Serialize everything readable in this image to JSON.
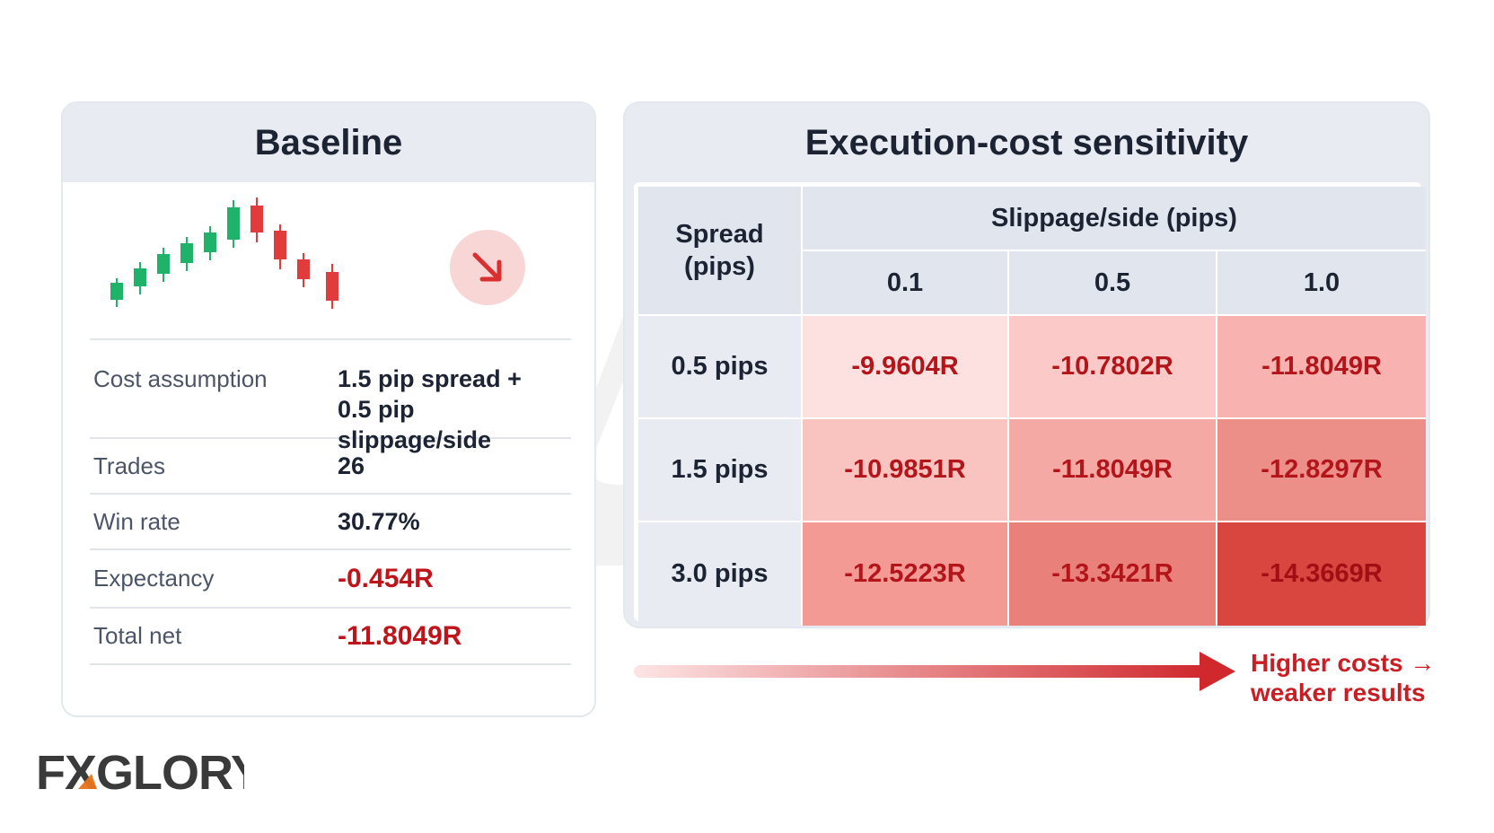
{
  "baseline": {
    "title": "Baseline",
    "trend_icon": "arrow-down-right-icon",
    "metrics": [
      {
        "label": "Cost assumption",
        "value_line1": "1.5 pip spread +",
        "value_line2": "0.5 pip slippage/side"
      },
      {
        "label": "Trades",
        "value": "26"
      },
      {
        "label": "Win rate",
        "value": "30.77%"
      },
      {
        "label": "Expectancy",
        "value": "-0.454R"
      },
      {
        "label": "Total net",
        "value": "-11.8049R"
      }
    ]
  },
  "sensitivity": {
    "title": "Execution-cost sensitivity",
    "row_header_line1": "Spread",
    "row_header_line2": "(pips)",
    "col_group_header": "Slippage/side (pips)",
    "columns": [
      "0.1",
      "0.5",
      "1.0"
    ],
    "rows": [
      {
        "label": "0.5 pips",
        "values": [
          "-9.9604R",
          "-10.7802R",
          "-11.8049R"
        ]
      },
      {
        "label": "1.5 pips",
        "values": [
          "-10.9851R",
          "-11.8049R",
          "-12.8297R"
        ]
      },
      {
        "label": "3.0 pips",
        "values": [
          "-12.5223R",
          "-13.3421R",
          "-14.3669R"
        ]
      }
    ],
    "cell_colors": [
      [
        "#fde1e0",
        "#fbc9c7",
        "#f8b3b0"
      ],
      [
        "#f9c3c0",
        "#f4a9a5",
        "#ed8f89"
      ],
      [
        "#f49a95",
        "#ea807a",
        "#d8463f"
      ]
    ]
  },
  "note": {
    "line1": "Higher costs →",
    "line2": "weaker results"
  },
  "logo": {
    "text": "FXGLORY",
    "accent_color": "#e8741e"
  },
  "colors": {
    "negative": "#c0141b",
    "up_candle": "#1fb36a",
    "down_candle": "#e23b3b"
  }
}
